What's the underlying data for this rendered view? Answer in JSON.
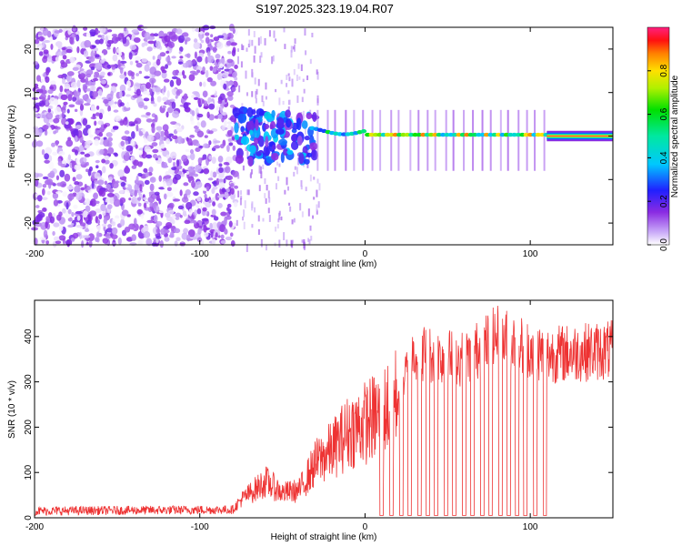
{
  "chart_data": [
    {
      "type": "heatmap",
      "title": "S197.2025.323.19.04.R07",
      "xlabel": "Height of straight line (km)",
      "ylabel": "Frequency (Hz)",
      "xlim": [
        -200,
        150
      ],
      "ylim": [
        -25,
        25
      ],
      "xticks": [
        -200,
        -100,
        0,
        100
      ],
      "yticks": [
        -20,
        -10,
        0,
        10,
        20
      ],
      "description_regions": [
        {
          "x_range": [
            -200,
            -78
          ],
          "kind": "broadband noise"
        },
        {
          "x_range": [
            -78,
            -30
          ],
          "kind": "scattered energy near 0 Hz"
        },
        {
          "x_range": [
            -30,
            110
          ],
          "kind": "coherent line near 0 to 2 Hz with periodic dropouts"
        },
        {
          "x_range": [
            110,
            150
          ],
          "kind": "steady strong line at 0 Hz"
        }
      ],
      "colorbar": {
        "label": "Normalized spectral amplitude",
        "ticks": [
          0.0,
          0.2,
          0.4,
          0.6,
          0.8
        ],
        "range": [
          0,
          1
        ]
      }
    },
    {
      "type": "line",
      "xlabel": "Height of straight line (km)",
      "ylabel": "SNR (10 * v/v)",
      "xlim": [
        -200,
        150
      ],
      "ylim": [
        0,
        480
      ],
      "xticks": [
        -200,
        -100,
        0,
        100
      ],
      "yticks": [
        0,
        100,
        200,
        300,
        400
      ],
      "color": "#ee3333",
      "series_summary": [
        {
          "x": -200,
          "y": 15
        },
        {
          "x": -80,
          "y": 18
        },
        {
          "x": -75,
          "y": 40
        },
        {
          "x": -60,
          "y": 80
        },
        {
          "x": -50,
          "y": 55
        },
        {
          "x": -40,
          "y": 60
        },
        {
          "x": -30,
          "y": 120
        },
        {
          "x": -20,
          "y": 150
        },
        {
          "x": -10,
          "y": 190
        },
        {
          "x": 0,
          "y": 210
        },
        {
          "x": 10,
          "y": 230
        },
        {
          "x": 20,
          "y": 270
        },
        {
          "x": 30,
          "y": 370
        },
        {
          "x": 40,
          "y": 360
        },
        {
          "x": 60,
          "y": 350
        },
        {
          "x": 80,
          "y": 400
        },
        {
          "x": 110,
          "y": 360
        },
        {
          "x": 150,
          "y": 370
        }
      ],
      "dropout_x": [
        10,
        16,
        22,
        27,
        33,
        38,
        43,
        49,
        54,
        60,
        65,
        71,
        76,
        82,
        87,
        92,
        97,
        103,
        109
      ]
    }
  ]
}
